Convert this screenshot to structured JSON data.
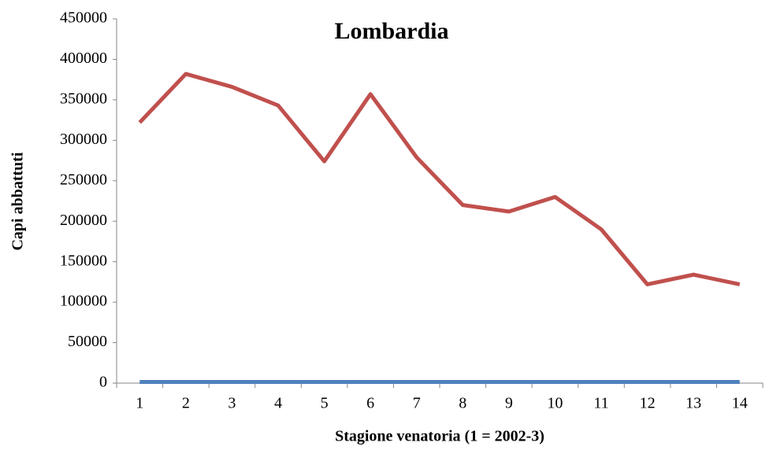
{
  "chart_data": {
    "type": "line",
    "title": "Lombardia",
    "xlabel": "Stagione venatoria (1 = 2002-3)",
    "ylabel": "Capi abbattuti",
    "categories": [
      "1",
      "2",
      "3",
      "4",
      "5",
      "6",
      "7",
      "8",
      "9",
      "10",
      "11",
      "12",
      "13",
      "14"
    ],
    "series": [
      {
        "color": "#c0504d",
        "values": [
          322000,
          382000,
          366000,
          343000,
          274000,
          357000,
          279000,
          220000,
          212000,
          230000,
          190000,
          122000,
          134000,
          122000
        ]
      },
      {
        "color": "#4f81bd",
        "values": [
          1500,
          1500,
          1500,
          1500,
          1500,
          1500,
          1500,
          1500,
          1500,
          1500,
          1500,
          1500,
          1500,
          1500
        ]
      }
    ],
    "ylim": [
      0,
      450000
    ],
    "yticks": [
      0,
      50000,
      100000,
      150000,
      200000,
      250000,
      300000,
      350000,
      400000,
      450000
    ],
    "grid": false
  }
}
